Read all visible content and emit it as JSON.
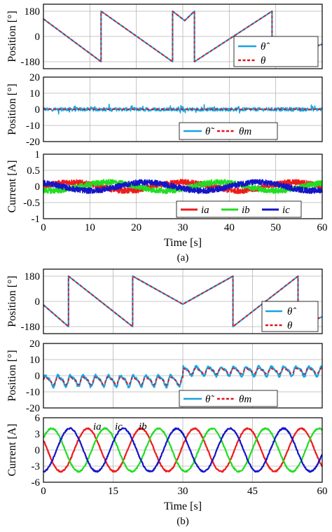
{
  "colors": {
    "estimate": "#1aa3e0",
    "actual": "#e0141e",
    "ia": "#ee1c1c",
    "ib": "#22dd22",
    "ic": "#1515c8",
    "grid": "#b4b4b4"
  },
  "chart_data": [
    {
      "figure": "(a)",
      "panel": 1,
      "type": "line",
      "ylabel": "Position [°]",
      "xlim": [
        0,
        60
      ],
      "ylim": [
        -230,
        230
      ],
      "yticks": [
        180,
        0,
        -180
      ],
      "xticks": [
        0,
        10,
        20,
        30,
        40,
        50,
        60
      ],
      "xticklabels": [],
      "legend": {
        "placement": "bottom-right",
        "entries": [
          "θ̂",
          "θ"
        ]
      },
      "series": [
        {
          "name": "θ̂",
          "style": "solid",
          "color": "estimate",
          "points": [
            [
              0,
              125
            ],
            [
              12.4,
              -180
            ],
            [
              12.4,
              180
            ],
            [
              27.8,
              -180
            ],
            [
              27.8,
              180
            ],
            [
              30.4,
              113
            ],
            [
              32.5,
              180
            ],
            [
              32.5,
              -180
            ],
            [
              49.2,
              180
            ],
            [
              49.2,
              -180
            ],
            [
              60,
              -55
            ]
          ]
        },
        {
          "name": "θ",
          "style": "dashed",
          "color": "actual",
          "points": [
            [
              0,
              125
            ],
            [
              12.4,
              -180
            ],
            [
              12.4,
              180
            ],
            [
              27.8,
              -180
            ],
            [
              27.8,
              180
            ],
            [
              30.4,
              113
            ],
            [
              32.5,
              180
            ],
            [
              32.5,
              -180
            ],
            [
              49.2,
              180
            ],
            [
              49.2,
              -180
            ],
            [
              60,
              -55
            ]
          ]
        }
      ]
    },
    {
      "figure": "(a)",
      "panel": 2,
      "type": "line",
      "ylabel": "Position [°]",
      "xlim": [
        0,
        60
      ],
      "ylim": [
        -20,
        20
      ],
      "yticks": [
        20,
        10,
        0,
        -10,
        -20
      ],
      "xticks": [
        0,
        10,
        20,
        30,
        40,
        50,
        60
      ],
      "xticklabels": [],
      "legend": {
        "placement": "bottom-right",
        "entries": [
          "θ̃",
          "θm"
        ]
      },
      "series": [
        {
          "name": "θ̃",
          "style": "solid",
          "color": "estimate",
          "mean": 0,
          "noise_amplitude": 2.2
        },
        {
          "name": "θm",
          "style": "dashed",
          "color": "actual",
          "mean": 0,
          "noise_amplitude": 0
        }
      ]
    },
    {
      "figure": "(a)",
      "panel": 3,
      "type": "line",
      "ylabel": "Current [A]",
      "xlabel": "Time [s]",
      "xlim": [
        0,
        60
      ],
      "ylim": [
        -1,
        1
      ],
      "yticks": [
        1,
        0.5,
        0,
        -0.5,
        -1
      ],
      "xticks": [
        0,
        10,
        20,
        30,
        40,
        50,
        60
      ],
      "xticklabels": [
        "0",
        "10",
        "20",
        "30",
        "40",
        "50",
        "60"
      ],
      "legend": {
        "placement": "bottom-right",
        "entries": [
          "ia",
          "ib",
          "ic"
        ]
      },
      "series": [
        {
          "name": "ia",
          "color": "ia",
          "amplitude": 0.13,
          "period": 24,
          "phase": 0,
          "noise_amplitude": 0.09
        },
        {
          "name": "ib",
          "color": "ib",
          "amplitude": 0.13,
          "period": 24,
          "phase": -2.094,
          "noise_amplitude": 0.09
        },
        {
          "name": "ic",
          "color": "ic",
          "amplitude": 0.13,
          "period": 24,
          "phase": 2.094,
          "noise_amplitude": 0.09
        }
      ]
    },
    {
      "figure": "(b)",
      "panel": 1,
      "type": "line",
      "ylabel": "Position [°]",
      "xlim": [
        0,
        60
      ],
      "ylim": [
        -230,
        230
      ],
      "yticks": [
        180,
        0,
        -180
      ],
      "xticks": [
        0,
        15,
        30,
        45,
        60
      ],
      "xticklabels": [],
      "legend": {
        "placement": "bottom-right",
        "entries": [
          "θ̂",
          "θ"
        ]
      },
      "series": [
        {
          "name": "θ̂",
          "style": "solid",
          "color": "estimate",
          "points": [
            [
              0,
              -25
            ],
            [
              5.4,
              -180
            ],
            [
              5.4,
              180
            ],
            [
              19.2,
              -180
            ],
            [
              19.2,
              180
            ],
            [
              30,
              -20
            ],
            [
              40.8,
              180
            ],
            [
              40.8,
              -180
            ],
            [
              54.8,
              180
            ],
            [
              54.8,
              -180
            ],
            [
              60,
              -110
            ]
          ]
        },
        {
          "name": "θ",
          "style": "dashed",
          "color": "actual",
          "points": [
            [
              0,
              -25
            ],
            [
              5.4,
              -180
            ],
            [
              5.4,
              180
            ],
            [
              19.2,
              -180
            ],
            [
              19.2,
              180
            ],
            [
              30,
              -20
            ],
            [
              40.8,
              180
            ],
            [
              40.8,
              -180
            ],
            [
              54.8,
              180
            ],
            [
              54.8,
              -180
            ],
            [
              60,
              -110
            ]
          ]
        }
      ]
    },
    {
      "figure": "(b)",
      "panel": 2,
      "type": "line",
      "ylabel": "Position [°]",
      "xlim": [
        0,
        60
      ],
      "ylim": [
        -20,
        20
      ],
      "yticks": [
        20,
        10,
        0,
        -10,
        -20
      ],
      "xticks": [
        0,
        15,
        30,
        45,
        60
      ],
      "xticklabels": [],
      "legend": {
        "placement": "bottom-right",
        "entries": [
          "θ̃",
          "θm"
        ]
      },
      "series": [
        {
          "name": "θ̃",
          "style": "solid",
          "color": "estimate",
          "ripple_period": 2.7,
          "segments": [
            {
              "x": [
                0,
                30
              ],
              "mean": -3,
              "amplitude": 6
            },
            {
              "x": [
                30,
                60
              ],
              "mean": 3,
              "amplitude": 5
            }
          ]
        },
        {
          "name": "θm",
          "style": "dashed",
          "color": "actual",
          "ripple_period": 2.7,
          "segments": [
            {
              "x": [
                0,
                30
              ],
              "mean": -3,
              "amplitude": 4
            },
            {
              "x": [
                30,
                60
              ],
              "mean": 3,
              "amplitude": 3
            }
          ]
        }
      ]
    },
    {
      "figure": "(b)",
      "panel": 3,
      "type": "line",
      "ylabel": "Current [A]",
      "xlabel": "Time [s]",
      "xlim": [
        0,
        60
      ],
      "ylim": [
        -6,
        6
      ],
      "yticks": [
        6,
        3,
        0,
        -3,
        -6
      ],
      "xticks": [
        0,
        15,
        30,
        45,
        60
      ],
      "xticklabels": [
        "0",
        "15",
        "30",
        "45",
        "60"
      ],
      "annotations": [
        "ia",
        "ic",
        "ib"
      ],
      "series": [
        {
          "name": "ia",
          "color": "ia",
          "amplitude": 4,
          "period": 11.5,
          "peak_at": 9.5
        },
        {
          "name": "ib",
          "color": "ib",
          "amplitude": 4,
          "period": 11.5,
          "peak_at": 1.8
        },
        {
          "name": "ic",
          "color": "ic",
          "amplitude": 4,
          "period": 11.5,
          "peak_at": 5.7
        }
      ]
    }
  ],
  "figure_a": {
    "caption": "(a)"
  },
  "figure_b": {
    "caption": "(b)"
  }
}
